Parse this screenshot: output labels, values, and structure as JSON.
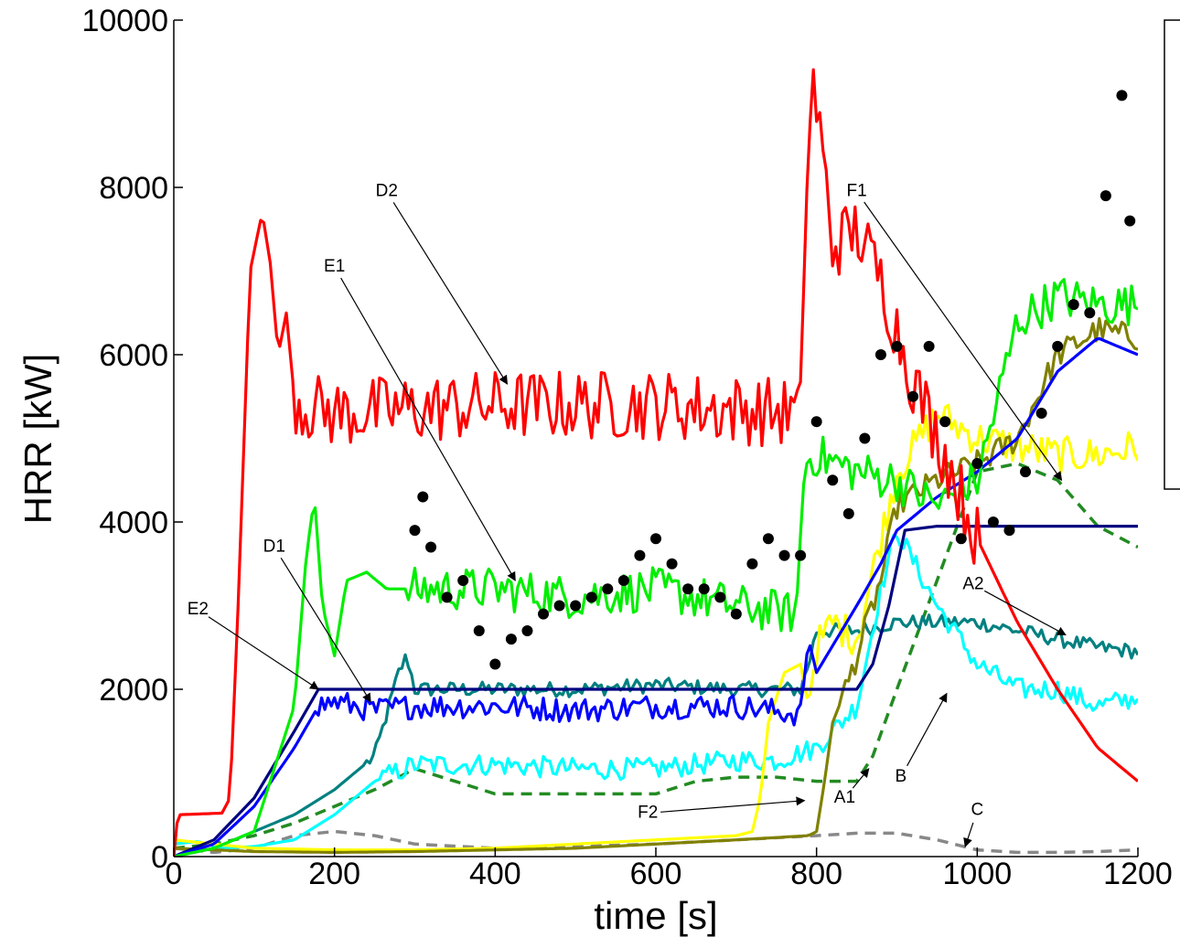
{
  "chart_data": {
    "type": "line",
    "title": "",
    "xlabel": "time [s]",
    "ylabel": "HRR [kW]",
    "xlim": [
      0,
      1200
    ],
    "ylim": [
      0,
      10000
    ],
    "xticks": [
      "0",
      "200",
      "400",
      "600",
      "800",
      "1000",
      "1200"
    ],
    "yticks": [
      "0",
      "2000",
      "4000",
      "6000",
      "8000",
      "10000"
    ],
    "grid": false,
    "legend": "right (box, entries not visible)",
    "series": [
      {
        "color": "#ff0000",
        "style": "solid",
        "noise": 420,
        "noiseFrom": 150,
        "noiseTo": 1000,
        "x": [
          0,
          5,
          60,
          70,
          80,
          95,
          110,
          120,
          130,
          140,
          150,
          160,
          200,
          400,
          600,
          780,
          785,
          795,
          805,
          820,
          850,
          880,
          920,
          960,
          1000,
          1050,
          1100,
          1150,
          1200
        ],
        "y": [
          0,
          500,
          520,
          700,
          3000,
          7000,
          7700,
          7100,
          6000,
          6500,
          5500,
          5400,
          5300,
          5400,
          5400,
          5300,
          7500,
          9300,
          8600,
          7300,
          7500,
          6900,
          5700,
          4800,
          3800,
          2800,
          2000,
          1300,
          900
        ]
      },
      {
        "color": "#00ee00",
        "style": "solid",
        "noise": 260,
        "noiseFrom": 290,
        "noiseTo": 1200,
        "x": [
          0,
          50,
          100,
          150,
          165,
          175,
          185,
          200,
          215,
          240,
          265,
          280,
          300,
          400,
          500,
          600,
          700,
          775,
          785,
          800,
          850,
          900,
          950,
          1000,
          1050,
          1100,
          1150,
          1200
        ],
        "y": [
          0,
          100,
          300,
          1800,
          3600,
          4300,
          3000,
          2400,
          3300,
          3400,
          3200,
          3200,
          3200,
          3200,
          3100,
          3200,
          3000,
          2900,
          4700,
          4800,
          4600,
          4500,
          4200,
          4500,
          6400,
          6700,
          6600,
          6600
        ]
      },
      {
        "color": "#0000ff",
        "style": "solid",
        "noise": 150,
        "noiseFrom": 180,
        "noiseTo": 780,
        "x": [
          0,
          50,
          100,
          150,
          180,
          200,
          250,
          300,
          400,
          500,
          600,
          700,
          780,
          790,
          800,
          850,
          880,
          900,
          950,
          1000,
          1050,
          1100,
          1150,
          1200
        ],
        "y": [
          0,
          150,
          600,
          1300,
          1800,
          1850,
          1750,
          1800,
          1800,
          1750,
          1800,
          1800,
          1700,
          2600,
          2200,
          3000,
          3500,
          3900,
          4300,
          4600,
          5000,
          5800,
          6200,
          6000
        ]
      },
      {
        "color": "#000080",
        "style": "solid",
        "x": [
          0,
          50,
          100,
          150,
          180,
          300,
          500,
          850,
          870,
          890,
          910,
          950,
          1000,
          1200
        ],
        "y": [
          0,
          200,
          700,
          1500,
          2000,
          2000,
          2000,
          2000,
          2300,
          3000,
          3900,
          3950,
          3950,
          3950
        ]
      },
      {
        "color": "#008080",
        "style": "solid",
        "noise": 90,
        "noiseFrom": 240,
        "noiseTo": 1200,
        "x": [
          0,
          50,
          100,
          150,
          200,
          250,
          280,
          290,
          300,
          400,
          500,
          600,
          700,
          780,
          790,
          800,
          850,
          900,
          950,
          1000,
          1050,
          1100,
          1150,
          1200
        ],
        "y": [
          0,
          100,
          300,
          500,
          800,
          1200,
          2200,
          2400,
          2000,
          2000,
          2000,
          2050,
          2000,
          2000,
          2300,
          2700,
          2700,
          2800,
          2800,
          2800,
          2700,
          2600,
          2500,
          2450
        ]
      },
      {
        "color": "#00ffff",
        "style": "solid",
        "noise": 130,
        "noiseFrom": 260,
        "noiseTo": 1200,
        "x": [
          0,
          30,
          60,
          100,
          150,
          200,
          250,
          300,
          350,
          400,
          500,
          600,
          700,
          750,
          800,
          850,
          880,
          900,
          950,
          1000,
          1050,
          1100,
          1150,
          1200
        ],
        "y": [
          150,
          180,
          100,
          120,
          200,
          500,
          900,
          1100,
          1100,
          1100,
          1050,
          1050,
          1150,
          1150,
          1300,
          1800,
          3200,
          3900,
          3000,
          2300,
          2000,
          2000,
          1800,
          1900
        ]
      },
      {
        "color": "#ffff00",
        "style": "solid",
        "noise": 220,
        "noiseFrom": 800,
        "noiseTo": 1200,
        "x": [
          0,
          50,
          100,
          200,
          300,
          400,
          500,
          600,
          700,
          720,
          730,
          740,
          760,
          780,
          790,
          800,
          820,
          850,
          900,
          950,
          1000,
          1050,
          1100,
          1150,
          1200
        ],
        "y": [
          200,
          150,
          100,
          80,
          80,
          100,
          150,
          200,
          250,
          300,
          700,
          1600,
          2200,
          2300,
          1800,
          2500,
          2800,
          2600,
          4600,
          5300,
          5000,
          4900,
          4800,
          4800,
          4900
        ]
      },
      {
        "color": "#808000",
        "style": "solid",
        "noise": 160,
        "noiseFrom": 830,
        "noiseTo": 1200,
        "x": [
          0,
          50,
          100,
          200,
          300,
          400,
          500,
          600,
          700,
          790,
          800,
          810,
          820,
          840,
          860,
          880,
          900,
          950,
          1000,
          1050,
          1100,
          1150,
          1200
        ],
        "y": [
          100,
          80,
          60,
          50,
          60,
          80,
          100,
          150,
          200,
          250,
          300,
          900,
          1600,
          2100,
          2700,
          3300,
          4200,
          4500,
          4700,
          5000,
          6000,
          6300,
          6200
        ]
      },
      {
        "color": "#228b22",
        "style": "dashed",
        "x": [
          0,
          50,
          100,
          150,
          200,
          250,
          300,
          350,
          400,
          450,
          500,
          550,
          600,
          650,
          700,
          750,
          800,
          850,
          870,
          900,
          950,
          1000,
          1050,
          1100,
          1150,
          1200
        ],
        "y": [
          100,
          150,
          250,
          400,
          600,
          800,
          1050,
          900,
          750,
          750,
          750,
          750,
          750,
          900,
          950,
          950,
          900,
          900,
          1200,
          2000,
          3300,
          4600,
          4700,
          4500,
          3950,
          3700
        ]
      },
      {
        "color": "#888888",
        "style": "dashed",
        "x": [
          0,
          50,
          100,
          150,
          200,
          250,
          300,
          400,
          500,
          600,
          700,
          800,
          850,
          900,
          950,
          1000,
          1050,
          1100,
          1150,
          1200
        ],
        "y": [
          100,
          50,
          100,
          250,
          300,
          250,
          150,
          100,
          120,
          150,
          200,
          250,
          280,
          280,
          200,
          80,
          50,
          50,
          60,
          80
        ]
      },
      {
        "color": "#000000",
        "style": "dots",
        "x": [
          300,
          310,
          320,
          340,
          360,
          380,
          400,
          420,
          440,
          460,
          480,
          500,
          520,
          540,
          560,
          580,
          600,
          620,
          640,
          660,
          680,
          700,
          720,
          740,
          760,
          780,
          800,
          820,
          840,
          860,
          880,
          900,
          920,
          940,
          960,
          980,
          1000,
          1020,
          1040,
          1060,
          1080,
          1100,
          1120,
          1140,
          1160,
          1180,
          1190
        ],
        "y": [
          3900,
          4300,
          3700,
          3100,
          3300,
          2700,
          2300,
          2600,
          2700,
          2900,
          3000,
          3000,
          3100,
          3200,
          3300,
          3600,
          3800,
          3500,
          3200,
          3200,
          3100,
          2900,
          3500,
          3800,
          3600,
          3600,
          5200,
          4500,
          4100,
          5000,
          6000,
          6100,
          5500,
          6100,
          5200,
          3800,
          4700,
          4000,
          3900,
          4600,
          5300,
          6100,
          6600,
          6500,
          7900,
          9100,
          7600
        ]
      }
    ],
    "annotations": [
      {
        "label": "E2",
        "textXY": [
          30,
          2950
        ],
        "arrowTo": [
          180,
          2000
        ]
      },
      {
        "label": "D1",
        "textXY": [
          125,
          3700
        ],
        "arrowTo": [
          245,
          1850
        ]
      },
      {
        "label": "E1",
        "textXY": [
          200,
          7050
        ],
        "arrowTo": [
          425,
          3300
        ]
      },
      {
        "label": "D2",
        "textXY": [
          265,
          7950
        ],
        "arrowTo": [
          415,
          5650
        ]
      },
      {
        "label": "F1",
        "textXY": [
          850,
          7950
        ],
        "arrowTo": [
          1105,
          4500
        ]
      },
      {
        "label": "A2",
        "textXY": [
          995,
          3250
        ],
        "arrowTo": [
          1110,
          2650
        ]
      },
      {
        "label": "F2",
        "textXY": [
          590,
          520
        ],
        "arrowTo": [
          785,
          670
        ]
      },
      {
        "label": "A1",
        "textXY": [
          835,
          700
        ],
        "arrowTo": [
          865,
          1050
        ]
      },
      {
        "label": "B",
        "textXY": [
          905,
          950
        ],
        "arrowTo": [
          962,
          1950
        ]
      },
      {
        "label": "C",
        "textXY": [
          1000,
          550
        ],
        "arrowTo": [
          985,
          120
        ]
      }
    ]
  }
}
